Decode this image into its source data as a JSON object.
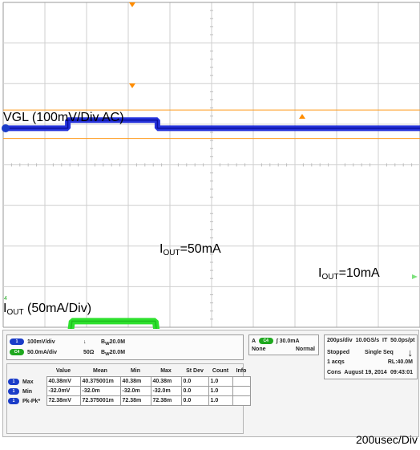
{
  "chart_data": {
    "type": "line",
    "title": "",
    "xlabel": "200usec/Div",
    "ylabel": "",
    "grid": true,
    "divisions": {
      "x": 10,
      "y": 8
    },
    "series": [
      {
        "name": "VGL (100mV/Div   AC)",
        "color": "#1a28d8",
        "units": "mV",
        "x": [
          "0",
          "1.55",
          "1.55",
          "3.7",
          "3.7",
          "10"
        ],
        "y": [
          0,
          0,
          20,
          20,
          0,
          0
        ]
      },
      {
        "name": "IOUT (50mA/Div)",
        "color": "#2ee02e",
        "units": "mA",
        "x": [
          "0",
          "1.55",
          "1.65",
          "3.65",
          "3.75",
          "10"
        ],
        "y": [
          10,
          10,
          50,
          50,
          10,
          10
        ]
      }
    ],
    "annotations": [
      {
        "prefix": "I",
        "sub": "OUT",
        "rest": "=50mA"
      },
      {
        "prefix": "I",
        "sub": "OUT",
        "rest": "=10mA"
      }
    ],
    "labels": {
      "vgl": "VGL (100mV/Div   AC)",
      "iout_prefix": "I",
      "iout_sub": "OUT",
      "iout_rest": " (50mA/Div)"
    }
  },
  "panel": {
    "channels": [
      {
        "id": "1",
        "color": "#1a3cc8",
        "scale": "100mV/div",
        "coupling_sym": "↓",
        "bw": "20.0M"
      },
      {
        "id": "C4",
        "color": "#1fa81f",
        "scale": "50.0mA/div",
        "coupling_sym": "50Ω",
        "bw": "20.0M"
      }
    ],
    "bw_prefix": "B",
    "bw_sub": "W",
    "trigger": {
      "source": "A",
      "channel": "C4",
      "level": "30.0mA",
      "mode_left": "None",
      "mode_right": "Normal"
    },
    "acq": {
      "timebase": "200µs/div",
      "rate": "10.0GS/s",
      "it": "IT",
      "res": "50.0ps/pt",
      "state": "Stopped",
      "seq": "Single Seq",
      "acqs": "1 acqs",
      "rl": "RL:40.0M",
      "cons": "Cons",
      "date": "August 19, 2014",
      "time": "09:43:01",
      "arrow": "↓"
    },
    "measurements": {
      "headers": [
        "",
        "Value",
        "Mean",
        "Min",
        "Max",
        "St Dev",
        "Count",
        "Info"
      ],
      "rows": [
        {
          "label": "Max",
          "cells": [
            "40.38mV",
            "40.375001m",
            "40.38m",
            "40.38m",
            "0.0",
            "1.0",
            ""
          ]
        },
        {
          "label": "Min",
          "cells": [
            "-32.0mV",
            "-32.0m",
            "-32.0m",
            "-32.0m",
            "0.0",
            "1.0",
            ""
          ]
        },
        {
          "label": "Pk-Pk*",
          "cells": [
            "72.38mV",
            "72.375001m",
            "72.38m",
            "72.38m",
            "0.0",
            "1.0",
            ""
          ]
        }
      ]
    }
  },
  "footer": {
    "timescale": "200usec/Div"
  }
}
